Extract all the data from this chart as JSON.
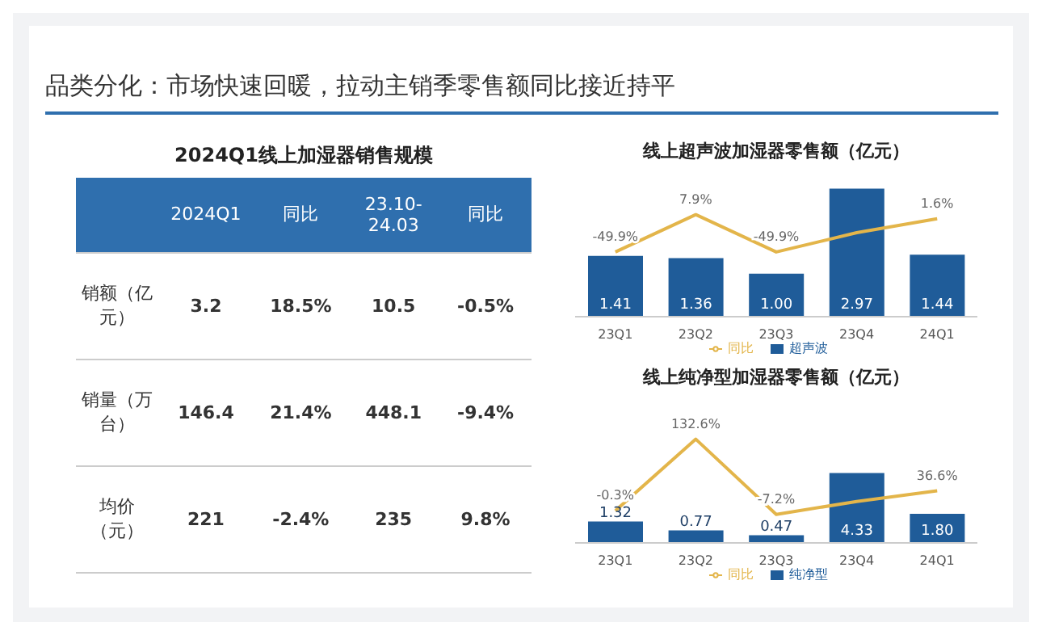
{
  "chart_data": [
    {
      "type": "other",
      "title": "品类分化：市场快速回暖，拉动主销季零售额同比接近持平",
      "subtitle": "2024Q1线上加湿器销售规模",
      "annotations": [
        "2024Q1",
        "同比",
        "23.10-24.03",
        "同比",
        "销额（亿元）",
        "3.2",
        "18.5%",
        "10.5",
        "-0.5%",
        "销量（万台）",
        "146.4",
        "21.4%",
        "448.1",
        "-9.4%",
        "均价（元）",
        "221",
        "-2.4%",
        "235",
        "9.8%"
      ]
    },
    {
      "type": "bar",
      "title": "线上超声波加湿器零售额（亿元）",
      "categories": [
        "23Q1",
        "23Q2",
        "23Q3",
        "23Q4",
        "24Q1"
      ],
      "legend": "bottom",
      "marker": "none",
      "grid": false,
      "series": [
        {
          "name": "超声波",
          "type": "bar",
          "color": "#1f5c99",
          "values": [
            1.41,
            1.36,
            1.0,
            2.97,
            1.44
          ],
          "value_labels": [
            "1.41",
            "1.36",
            "1.00",
            "2.97",
            "1.44"
          ]
        },
        {
          "name": "同比",
          "type": "line",
          "axis": "y2",
          "color": "#e3b54a",
          "values": [
            -49.9,
            7.9,
            -49.9,
            -20,
            1.6
          ],
          "value_labels": [
            "-49.9%",
            "7.9%",
            "-49.9%",
            null,
            "1.6%"
          ]
        }
      ]
    },
    {
      "type": "bar",
      "title": "线上纯净型加湿器零售额（亿元）",
      "categories": [
        "23Q1",
        "23Q2",
        "23Q3",
        "23Q4",
        "24Q1"
      ],
      "legend": "bottom",
      "marker": "none",
      "grid": false,
      "series": [
        {
          "name": "纯净型",
          "type": "bar",
          "color": "#1f5c99",
          "values": [
            1.32,
            0.77,
            0.47,
            4.33,
            1.8
          ],
          "value_labels": [
            "1.32",
            "0.77",
            "0.47",
            "4.33",
            "1.80"
          ]
        },
        {
          "name": "同比",
          "type": "line",
          "axis": "y2",
          "color": "#e3b54a",
          "values": [
            -0.3,
            132.6,
            -7.2,
            17,
            36.6
          ],
          "value_labels": [
            "-0.3%",
            "132.6%",
            "-7.2%",
            null,
            "36.6%"
          ]
        }
      ]
    }
  ]
}
